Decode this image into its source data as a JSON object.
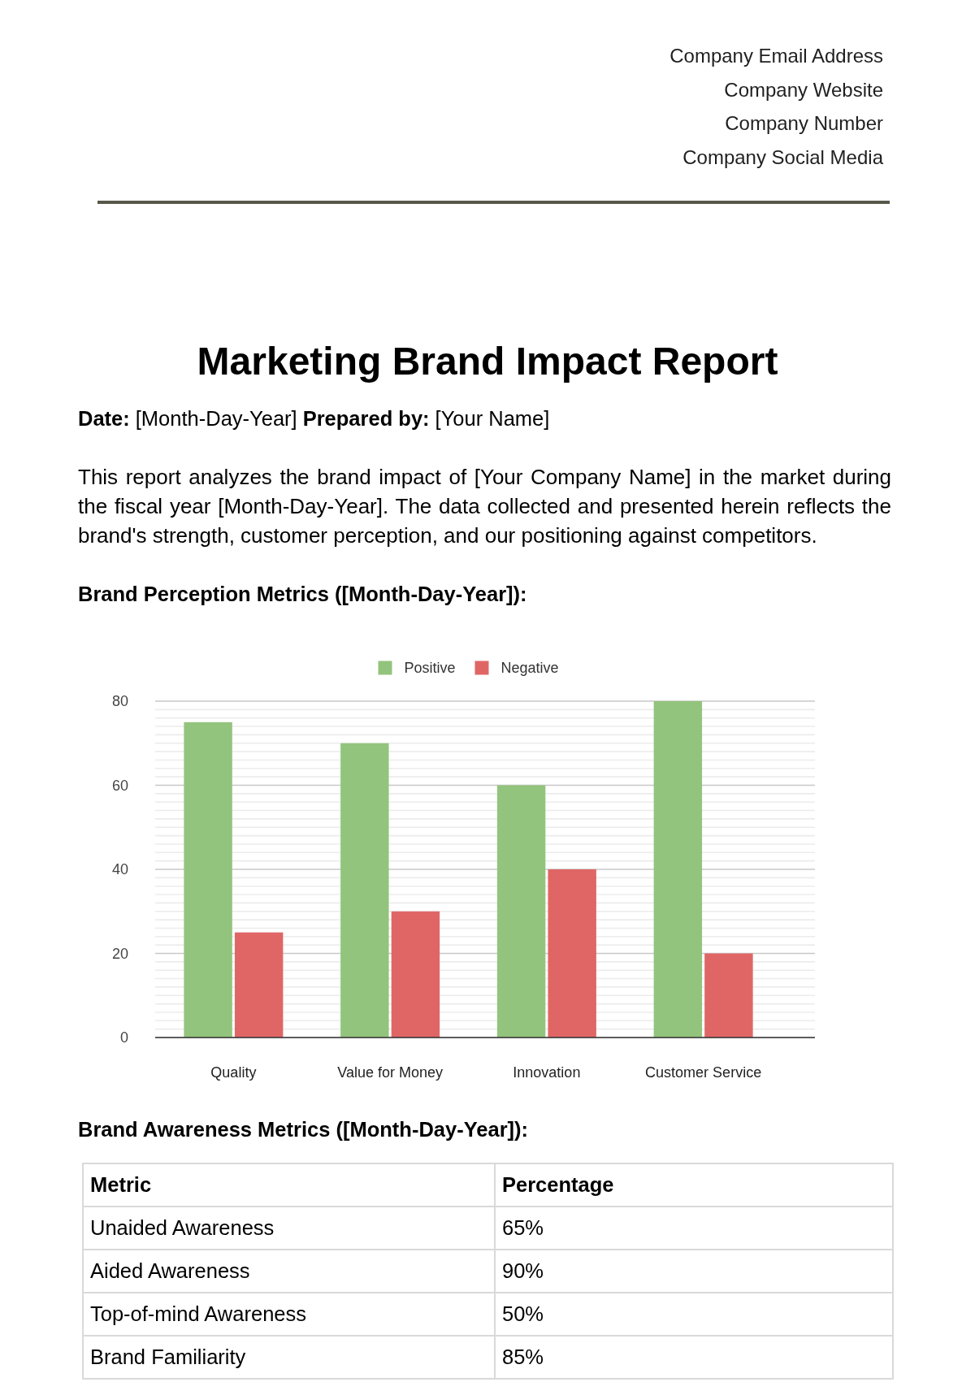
{
  "chart_data": [
    {
      "type": "bar",
      "title": "Brand Perception Metrics ([Month-Day-Year]):",
      "annotations": [
        "Company Email Address",
        "Company Website",
        "Company Number",
        "Company Social Media",
        "Marketing Brand Impact Report",
        "Date:",
        "[Month-Day-Year]",
        "Prepared by:",
        "[Your Name]",
        "This report analyzes the brand impact of [Your Company Name] in the market during the fiscal year [Month-Day-Year]. The data collected and presented herein reflects the brand's strength, customer perception, and our positioning against competitors."
      ],
      "categories": [
        "Quality",
        "Value for Money",
        "Innovation",
        "Customer Service"
      ],
      "series": [
        {
          "name": "Positive",
          "color": "#93c47d",
          "values": [
            75,
            70,
            60,
            80
          ]
        },
        {
          "name": "Negative",
          "color": "#e06666",
          "values": [
            25,
            30,
            40,
            20
          ]
        }
      ],
      "ylim": [
        0,
        80
      ],
      "yticks": [
        0,
        {
          "value": 2,
          "label": null
        },
        {
          "value": 4,
          "label": null
        },
        {
          "value": 6,
          "label": null
        },
        {
          "value": 8,
          "label": null
        },
        {
          "value": 10,
          "label": null
        },
        {
          "value": 12,
          "label": null
        },
        {
          "value": 14,
          "label": null
        },
        {
          "value": 16,
          "label": null
        },
        {
          "value": 18,
          "label": null
        },
        20,
        {
          "value": 22,
          "label": null
        },
        {
          "value": 24,
          "label": null
        },
        {
          "value": 26,
          "label": null
        },
        {
          "value": 28,
          "label": null
        },
        {
          "value": 30,
          "label": null
        },
        {
          "value": 32,
          "label": null
        },
        {
          "value": 34,
          "label": null
        },
        {
          "value": 36,
          "label": null
        },
        {
          "value": 38,
          "label": null
        },
        40,
        {
          "value": 42,
          "label": null
        },
        {
          "value": 44,
          "label": null
        },
        {
          "value": 46,
          "label": null
        },
        {
          "value": 48,
          "label": null
        },
        {
          "value": 50,
          "label": null
        },
        {
          "value": 52,
          "label": null
        },
        {
          "value": 54,
          "label": null
        },
        {
          "value": 56,
          "label": null
        },
        {
          "value": 58,
          "label": null
        },
        60,
        {
          "value": 62,
          "label": null
        },
        {
          "value": 64,
          "label": null
        },
        {
          "value": 66,
          "label": null
        },
        {
          "value": 68,
          "label": null
        },
        {
          "value": 70,
          "label": null
        },
        {
          "value": 72,
          "label": null
        },
        {
          "value": 74,
          "label": null
        },
        {
          "value": 76,
          "label": null
        },
        {
          "value": 78,
          "label": null
        },
        80
      ],
      "grid": "y",
      "legend": "top"
    },
    {
      "type": "other",
      "title": "Brand Awareness Metrics ([Month-Day-Year]):",
      "annotations": [
        "Metric",
        "Percentage",
        "Unaided Awareness",
        "65%",
        "Aided Awareness",
        "90%",
        "Top-of-mind Awareness",
        "50%",
        "Brand Familiarity",
        "85%"
      ]
    }
  ]
}
